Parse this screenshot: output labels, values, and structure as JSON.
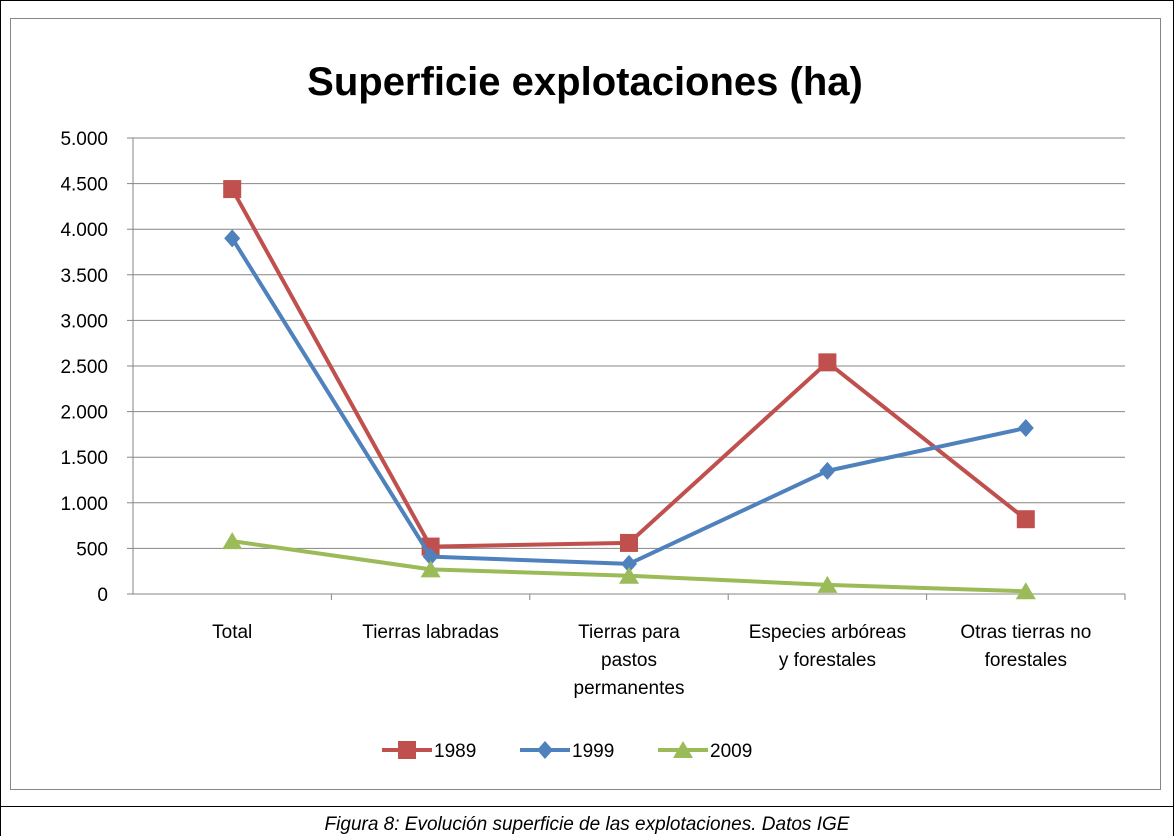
{
  "chart_data": {
    "type": "line",
    "title": "Superficie explotaciones (ha)",
    "categories": [
      "Total",
      "Tierras labradas",
      "Tierras para pastos permanentes",
      "Especies arbóreas y forestales",
      "Otras tierras no forestales"
    ],
    "series": [
      {
        "name": "1989",
        "color": "#c0504d",
        "marker": "square",
        "values": [
          4440,
          520,
          560,
          2540,
          820
        ]
      },
      {
        "name": "1999",
        "color": "#4f81bd",
        "marker": "diamond",
        "values": [
          3900,
          410,
          330,
          1350,
          1820
        ]
      },
      {
        "name": "2009",
        "color": "#9bbb59",
        "marker": "triangle",
        "values": [
          580,
          270,
          200,
          100,
          30
        ]
      }
    ],
    "ylim": [
      0,
      5000
    ],
    "yticks": [
      0,
      500,
      {
        "value": 1000,
        "label": "1.000"
      },
      {
        "value": 1500,
        "label": "1.500"
      },
      {
        "value": 2000,
        "label": "2.000"
      },
      {
        "value": 2500,
        "label": "2.500"
      },
      {
        "value": 3000,
        "label": "3.000"
      },
      {
        "value": 3500,
        "label": "3.500"
      },
      {
        "value": 4000,
        "label": "4.000"
      },
      {
        "value": 4500,
        "label": "4.500"
      },
      {
        "value": 5000,
        "label": "5.000"
      }
    ],
    "grid": true,
    "legend": "bottom"
  },
  "caption": "Figura 8: Evolución superficie de las explotaciones. Datos IGE"
}
